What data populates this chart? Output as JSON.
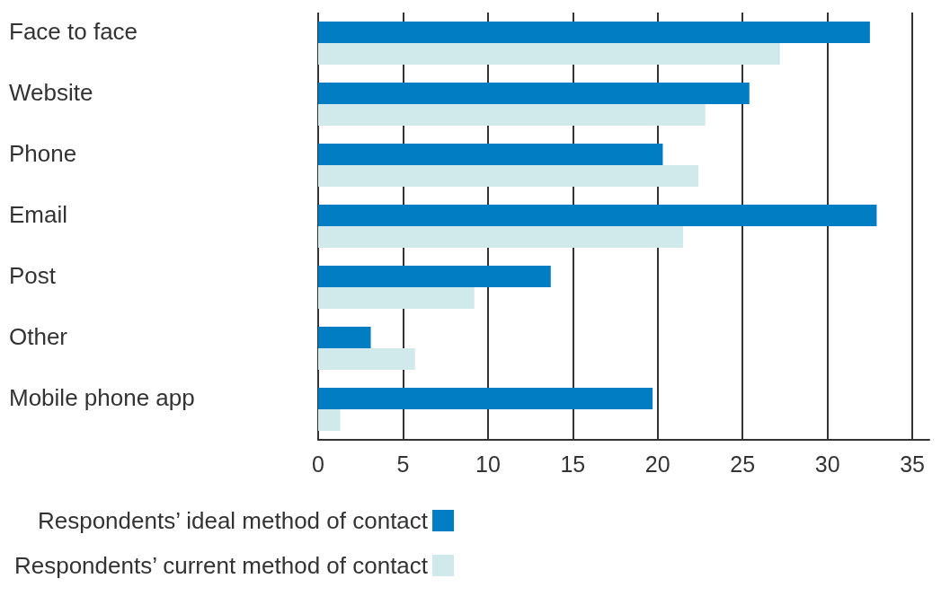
{
  "chart_data": {
    "type": "bar",
    "orientation": "horizontal",
    "categories": [
      "Face to face",
      "Website",
      "Phone",
      "Email",
      "Post",
      "Other",
      "Mobile phone app"
    ],
    "series": [
      {
        "name": "Respondents’ ideal method of contact",
        "color": "#007dc3",
        "values": [
          32.5,
          25.4,
          20.3,
          32.9,
          13.7,
          3.1,
          19.7
        ]
      },
      {
        "name": "Respondents’ current method of contact",
        "color": "#d0e9ea",
        "values": [
          27.2,
          22.8,
          22.4,
          21.5,
          9.2,
          5.7,
          1.3
        ]
      }
    ],
    "xlim": [
      0,
      36
    ],
    "xticks": [
      0,
      5,
      10,
      15,
      20,
      25,
      30,
      35
    ],
    "grid": "x",
    "legend": "bottom left"
  }
}
